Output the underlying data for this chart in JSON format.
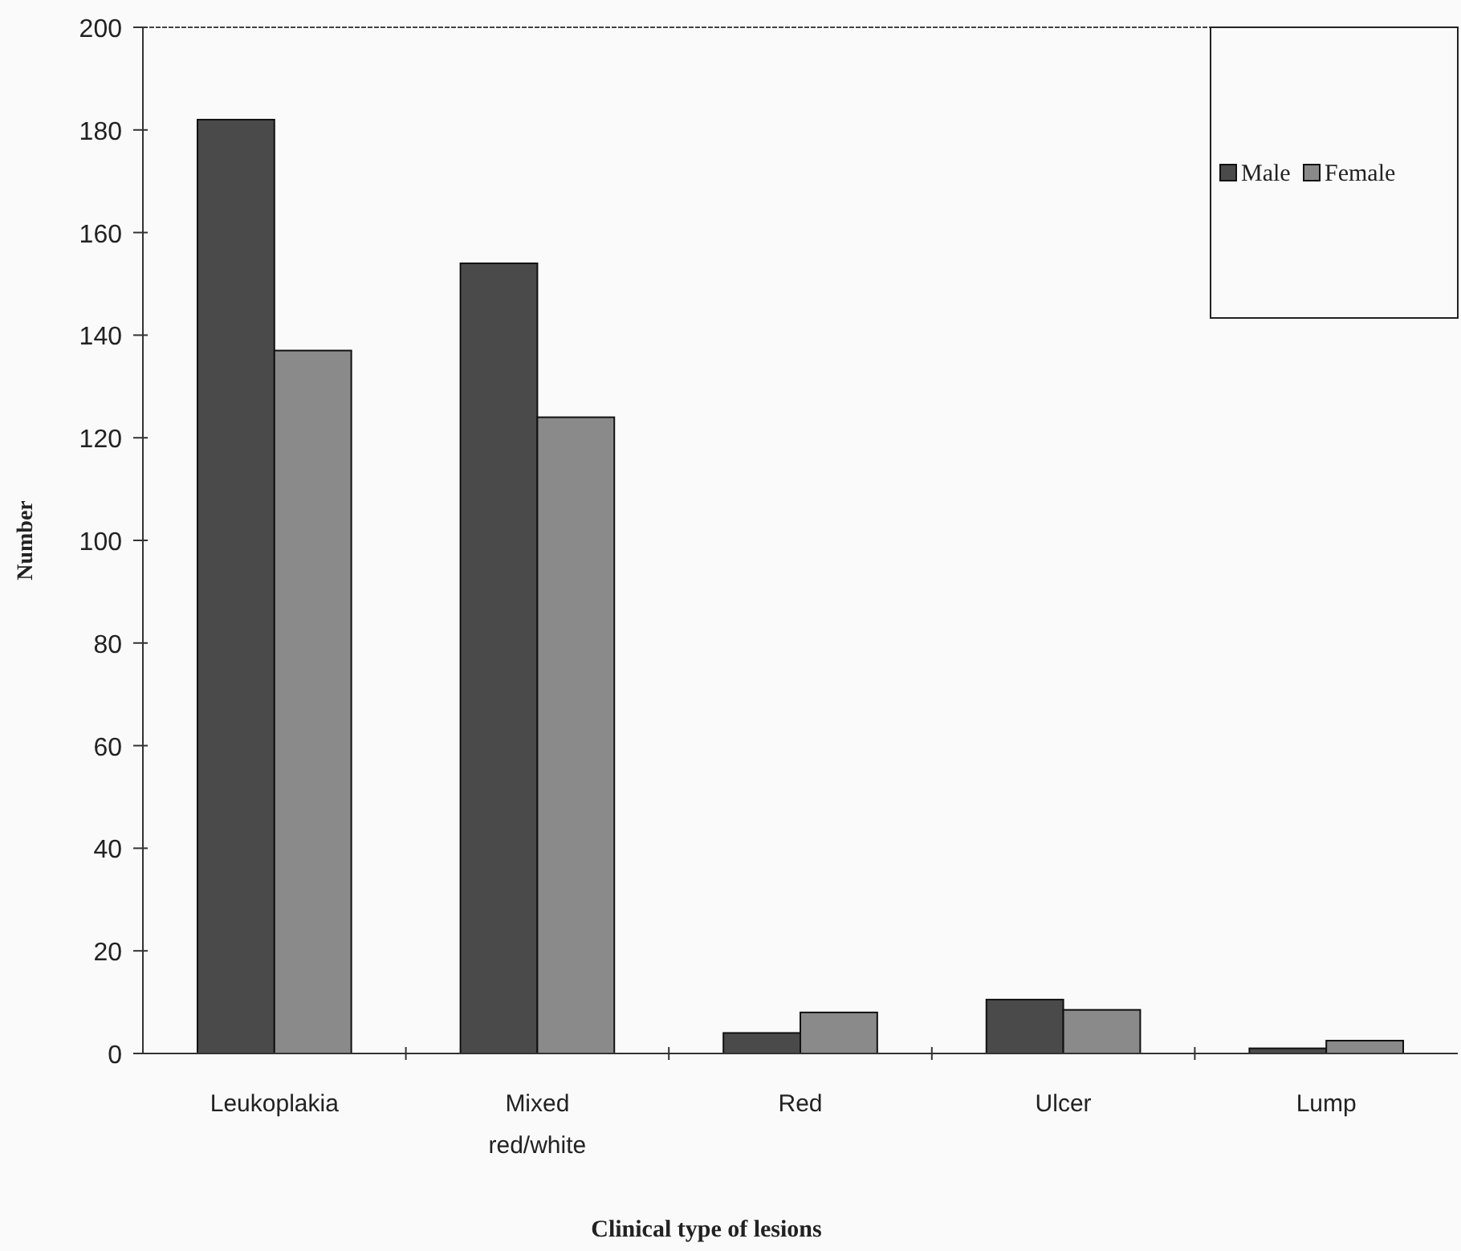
{
  "chart_data": {
    "type": "bar",
    "xlabel": "Clinical type of lesions",
    "ylabel": "Number",
    "categories": [
      "Leukoplakia",
      "Mixed red/white",
      "Red",
      "Ulcer",
      "Lump"
    ],
    "series": [
      {
        "name": "Male",
        "color": "#4a4a4a",
        "values": [
          182,
          154,
          4,
          10.5,
          1
        ]
      },
      {
        "name": "Female",
        "color": "#8a8a8a",
        "values": [
          137,
          124,
          8,
          8.5,
          2.5
        ]
      }
    ],
    "ylim": [
      0,
      200
    ],
    "yticks": [
      0,
      20,
      40,
      60,
      80,
      100,
      120,
      140,
      160,
      180,
      200
    ],
    "grid": false,
    "legend": "top right"
  }
}
